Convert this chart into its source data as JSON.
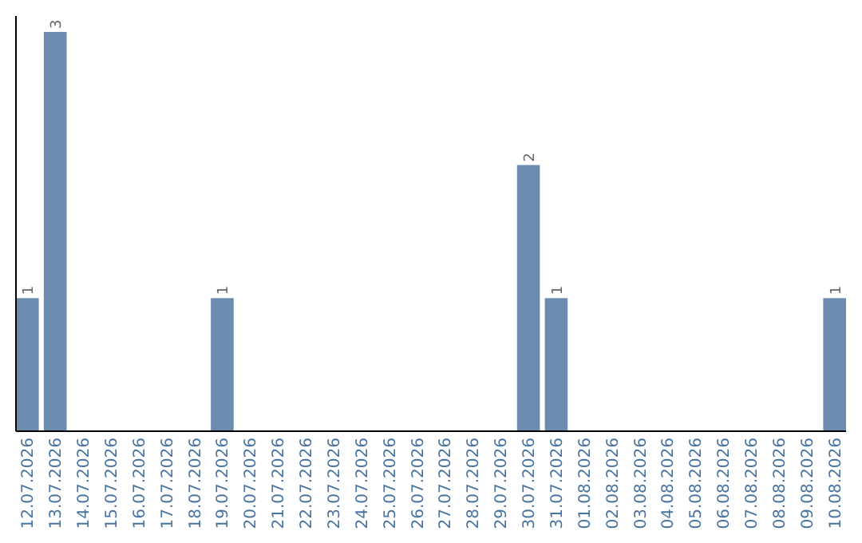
{
  "chart_data": {
    "type": "bar",
    "categories": [
      "12.07.2026",
      "13.07.2026",
      "14.07.2026",
      "15.07.2026",
      "16.07.2026",
      "17.07.2026",
      "18.07.2026",
      "19.07.2026",
      "20.07.2026",
      "21.07.2026",
      "22.07.2026",
      "23.07.2026",
      "24.07.2026",
      "25.07.2026",
      "26.07.2026",
      "27.07.2026",
      "28.07.2026",
      "29.07.2026",
      "30.07.2026",
      "31.07.2026",
      "01.08.2026",
      "02.08.2026",
      "03.08.2026",
      "04.08.2026",
      "05.08.2026",
      "06.08.2026",
      "07.08.2026",
      "08.08.2026",
      "09.08.2026",
      "10.08.2026"
    ],
    "values": [
      1,
      3,
      0,
      0,
      0,
      0,
      0,
      1,
      0,
      0,
      0,
      0,
      0,
      0,
      0,
      0,
      0,
      0,
      2,
      1,
      0,
      0,
      0,
      0,
      0,
      0,
      0,
      0,
      0,
      1
    ],
    "value_labels": [
      "1",
      "3",
      null,
      null,
      null,
      null,
      null,
      "1",
      null,
      null,
      null,
      null,
      null,
      null,
      null,
      null,
      null,
      null,
      "2",
      "1",
      null,
      null,
      null,
      null,
      null,
      null,
      null,
      null,
      null,
      "1"
    ],
    "color": "#6b8cae",
    "tick_labels": "x"
  }
}
